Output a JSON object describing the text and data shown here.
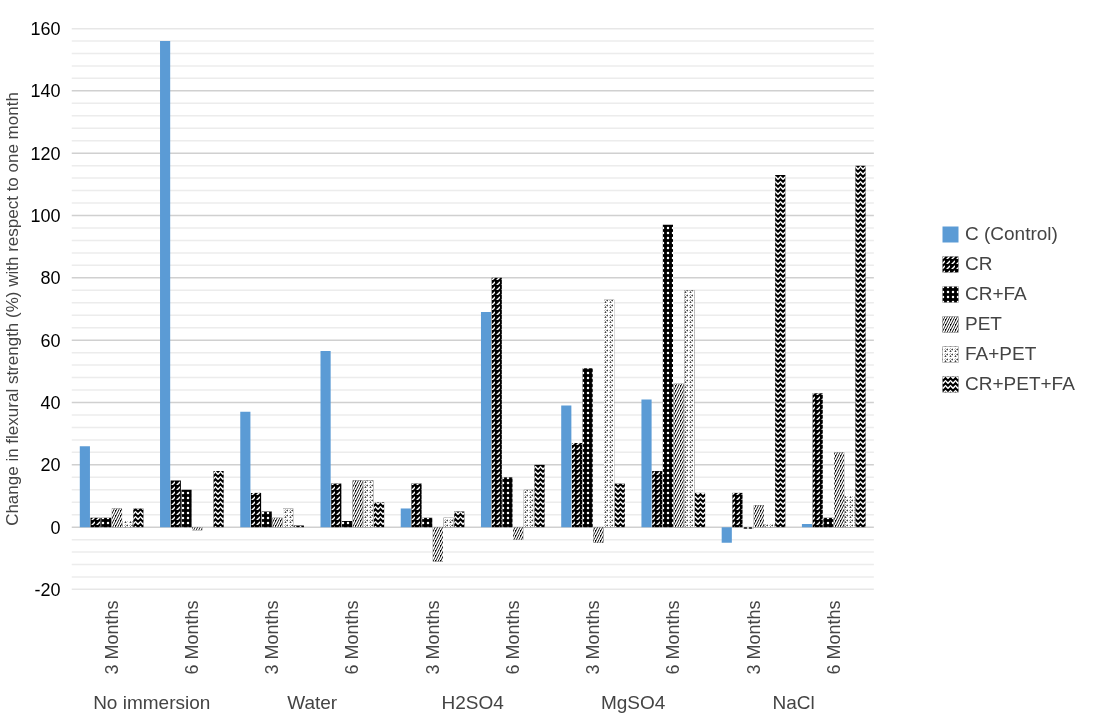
{
  "chart_data": {
    "type": "bar",
    "ylabel": "Change in flexural strength (%) with respect to one month",
    "categories": [
      "3 Months",
      "6 Months",
      "3 Months",
      "6 Months",
      "3 Months",
      "6 Months",
      "3 Months",
      "6 Months",
      "3 Months",
      "6 Months"
    ],
    "annotations": [
      "No immersion",
      "Water",
      "H2SO4",
      "MgSO4",
      "NaCl"
    ],
    "series": [
      {
        "name": "C (Control)",
        "color": "#5b9bd5",
        "values": [
          26,
          156,
          37,
          56.5,
          6,
          69,
          39,
          41,
          -5,
          1
        ]
      },
      {
        "name": "CR",
        "color": "#000000",
        "values": [
          3,
          15,
          11,
          14,
          14,
          80,
          27,
          18,
          11,
          43
        ]
      },
      {
        "name": "CR+FA",
        "color": "#000000",
        "values": [
          3,
          12,
          5,
          2,
          3,
          16,
          51,
          97,
          -0.5,
          3
        ]
      },
      {
        "name": "PET",
        "color": "#000000",
        "values": [
          6,
          -1,
          3,
          15,
          -11,
          -4,
          -5,
          46,
          7,
          24
        ]
      },
      {
        "name": "FA+PET",
        "color": "#000000",
        "values": [
          2,
          0,
          6,
          15,
          3,
          12,
          73,
          76,
          1,
          10
        ]
      },
      {
        "name": "CR+PET+FA",
        "color": "#000000",
        "values": [
          6,
          18,
          0.5,
          8,
          5,
          20,
          14,
          11,
          113,
          116
        ]
      }
    ],
    "ylim": [
      -20,
      160
    ],
    "yticks": [
      -20,
      0,
      20,
      40,
      60,
      80,
      100,
      120,
      140,
      160
    ],
    "grid": "y",
    "legend": "right"
  }
}
